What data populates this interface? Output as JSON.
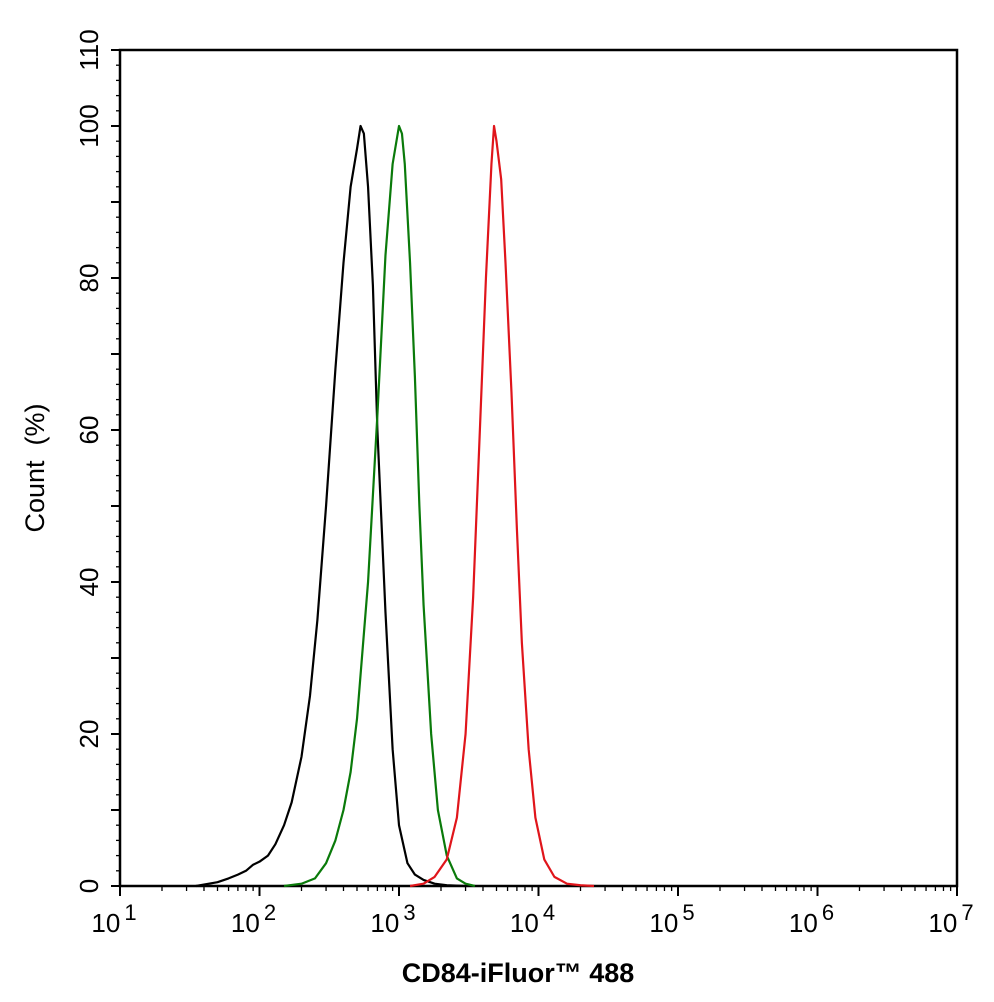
{
  "chart_data": {
    "type": "line",
    "title": "",
    "xlabel": "CD84-iFluor™ 488",
    "ylabel": "Count  (%)",
    "x_scale": "log",
    "xlim": [
      10,
      10000000
    ],
    "ylim": [
      0,
      110
    ],
    "grid": false,
    "legend": "none",
    "x_ticks": [
      {
        "value": 10,
        "base": "10",
        "exp": "1"
      },
      {
        "value": 100,
        "base": "10",
        "exp": "2"
      },
      {
        "value": 1000,
        "base": "10",
        "exp": "3"
      },
      {
        "value": 10000,
        "base": "10",
        "exp": "4"
      },
      {
        "value": 100000,
        "base": "10",
        "exp": "5"
      },
      {
        "value": 1000000,
        "base": "10",
        "exp": "6"
      },
      {
        "value": 10000000,
        "base": "10",
        "exp": "7"
      }
    ],
    "y_ticks": [
      {
        "value": 0,
        "label": "0"
      },
      {
        "value": 20,
        "label": "20"
      },
      {
        "value": 40,
        "label": "40"
      },
      {
        "value": 60,
        "label": "60"
      },
      {
        "value": 80,
        "label": "80"
      },
      {
        "value": 100,
        "label": "100"
      },
      {
        "value": 110,
        "label": "110"
      }
    ],
    "series": [
      {
        "color": "#000000",
        "x": [
          35,
          50,
          60,
          70,
          80,
          90,
          100,
          115,
          130,
          150,
          170,
          200,
          230,
          260,
          300,
          350,
          400,
          450,
          500,
          530,
          560,
          600,
          650,
          700,
          800,
          900,
          1000,
          1150,
          1300,
          1500,
          1800,
          2200,
          3000
        ],
        "y": [
          0,
          0.5,
          1,
          1.5,
          2,
          2.8,
          3.2,
          4,
          5.5,
          8,
          11,
          17,
          25,
          35,
          50,
          68,
          82,
          92,
          97,
          100,
          99,
          92,
          79,
          60,
          36,
          18,
          8,
          3,
          1.5,
          0.8,
          0.3,
          0.1,
          0
        ]
      },
      {
        "color": "#0a7a0a",
        "x": [
          150,
          200,
          250,
          300,
          350,
          400,
          450,
          500,
          600,
          700,
          800,
          900,
          1000,
          1050,
          1100,
          1200,
          1300,
          1400,
          1500,
          1700,
          1900,
          2200,
          2600,
          3000,
          3500
        ],
        "y": [
          0,
          0.3,
          1,
          3,
          6,
          10,
          15,
          22,
          40,
          62,
          83,
          95,
          100,
          99,
          95,
          82,
          67,
          50,
          37,
          20,
          10,
          4,
          1,
          0.3,
          0
        ]
      },
      {
        "color": "#e0151b",
        "x": [
          1200,
          1500,
          1800,
          2200,
          2600,
          3000,
          3400,
          3800,
          4200,
          4600,
          4800,
          5000,
          5400,
          5800,
          6400,
          7000,
          7600,
          8500,
          9500,
          11000,
          13000,
          16000,
          20000,
          25000
        ],
        "y": [
          0,
          0.3,
          1.2,
          3.5,
          9,
          20,
          38,
          60,
          80,
          95,
          100,
          98,
          93,
          82,
          65,
          47,
          32,
          18,
          9,
          3.5,
          1.2,
          0.3,
          0.1,
          0
        ]
      }
    ]
  }
}
